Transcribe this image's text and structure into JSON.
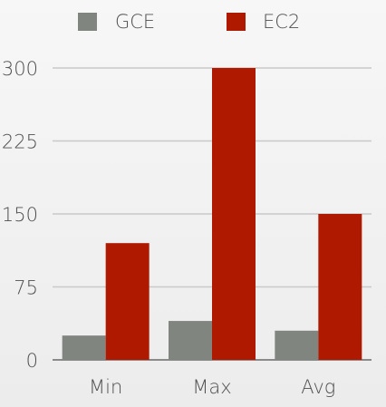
{
  "chart_data": {
    "type": "bar",
    "categories": [
      "Min",
      "Max",
      "Avg"
    ],
    "series": [
      {
        "name": "GCE",
        "color": "#818580",
        "values": [
          25,
          40,
          30
        ]
      },
      {
        "name": "EC2",
        "color": "#ae1900",
        "values": [
          120,
          300,
          150
        ]
      }
    ],
    "title": "",
    "xlabel": "",
    "ylabel": "",
    "ylim": [
      0,
      300
    ],
    "yticks": [
      0,
      75,
      150,
      225,
      300
    ],
    "grid": true,
    "legend_position": "top"
  }
}
